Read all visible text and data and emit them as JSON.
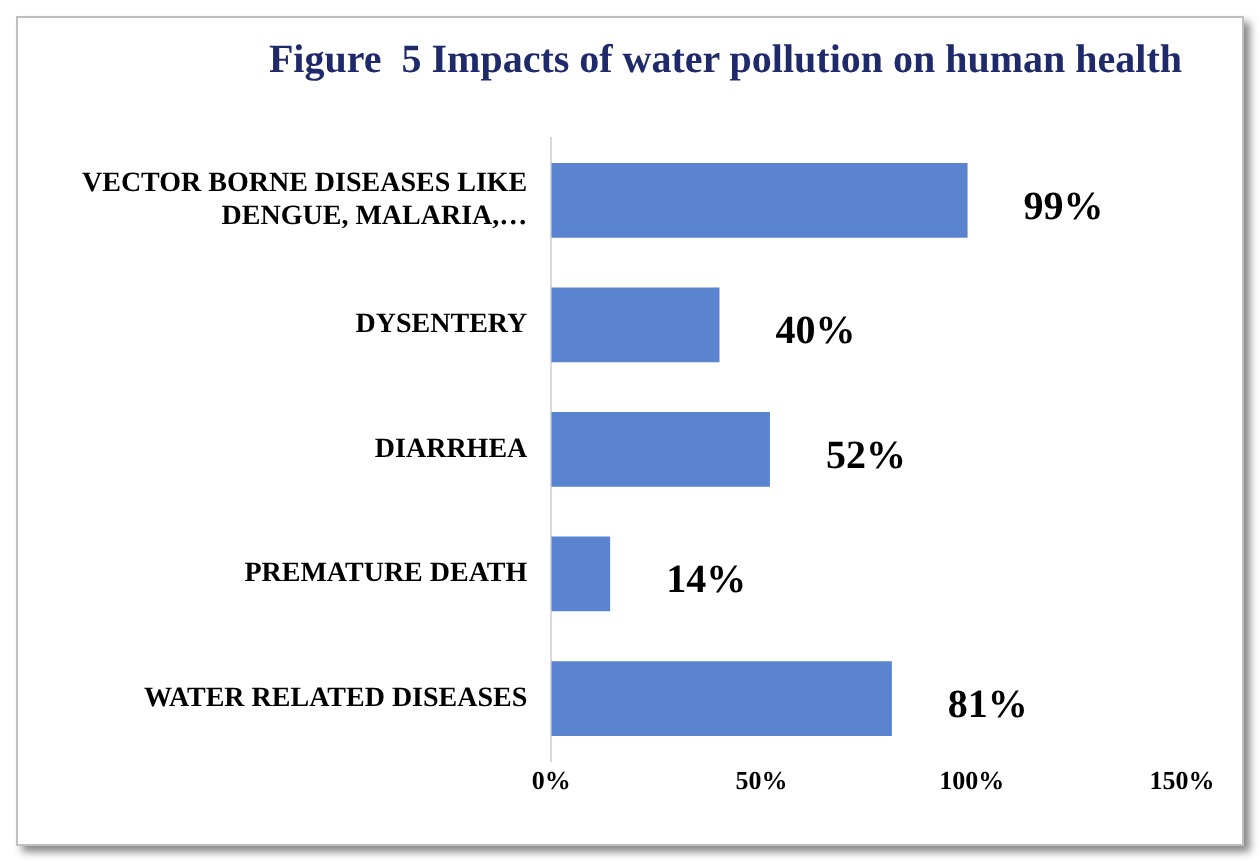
{
  "chart_data": {
    "type": "bar",
    "orientation": "horizontal",
    "title": "Figure  5 Impacts of water pollution on human health",
    "categories": [
      "VECTOR BORNE DISEASES LIKE DENGUE, MALARIA,…",
      "DYSENTERY",
      "DIARRHEA",
      "PREMATURE DEATH",
      "WATER RELATED DISEASES"
    ],
    "values": [
      99,
      40,
      52,
      14,
      81
    ],
    "value_labels": [
      "99%",
      "40%",
      "52%",
      "14%",
      "81%"
    ],
    "color": "#5b84d0",
    "xlim": [
      0,
      150
    ],
    "xticks": [
      {
        "value": 0,
        "label": "0%"
      },
      {
        "value": 50,
        "label": "50%"
      },
      {
        "value": 100,
        "label": "100%"
      },
      {
        "value": 150,
        "label": "150%"
      }
    ],
    "grid": false,
    "legend": false
  }
}
